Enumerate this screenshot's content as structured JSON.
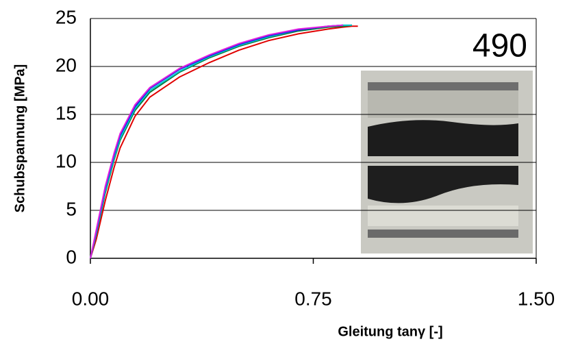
{
  "chart_data": {
    "type": "line",
    "annotation": "490",
    "xlabel": "Gleitung tanγ [-]",
    "ylabel": "Schubspannung [MPa]",
    "x": [
      0,
      0.02,
      0.05,
      0.08,
      0.1,
      0.15,
      0.2,
      0.3,
      0.4,
      0.5,
      0.6,
      0.7,
      0.8,
      0.85,
      0.88,
      0.9
    ],
    "series": [
      {
        "color": "#e00000",
        "values": [
          0,
          2,
          6,
          9.5,
          11.5,
          14.8,
          16.8,
          18.9,
          20.4,
          21.7,
          22.7,
          23.4,
          23.9,
          24.1,
          24.2,
          24.2
        ]
      },
      {
        "color": "#0a7a3a",
        "values": [
          0,
          2.5,
          6.8,
          10.3,
          12.3,
          15.4,
          17.3,
          19.4,
          20.9,
          22.1,
          23.0,
          23.7,
          24.1,
          24.2,
          24.3,
          null
        ]
      },
      {
        "color": "#00c8d0",
        "values": [
          0,
          2.6,
          7,
          10.5,
          12.5,
          15.6,
          17.5,
          19.5,
          21.0,
          22.2,
          23.1,
          23.8,
          24.2,
          24.3,
          24.3,
          null
        ]
      },
      {
        "color": "#2020e0",
        "values": [
          0,
          2.8,
          7.3,
          10.8,
          12.8,
          15.8,
          17.7,
          19.7,
          21.1,
          22.3,
          23.2,
          23.8,
          24.2,
          24.3,
          null,
          null
        ]
      },
      {
        "color": "#e020e0",
        "values": [
          0,
          3,
          7.5,
          11,
          13,
          16,
          17.8,
          19.8,
          21.2,
          22.4,
          23.3,
          23.9,
          24.2,
          24.3,
          null,
          null
        ]
      }
    ],
    "xlim": [
      0,
      1.5
    ],
    "xticks": [
      {
        "value": 0,
        "label": "0.00"
      },
      {
        "value": 0.75,
        "label": "0.75"
      },
      {
        "value": 1.5,
        "label": "1.50"
      }
    ],
    "ylim": [
      0,
      25
    ],
    "yticks": [
      0,
      5,
      10,
      15,
      20,
      25
    ],
    "grid": true
  }
}
